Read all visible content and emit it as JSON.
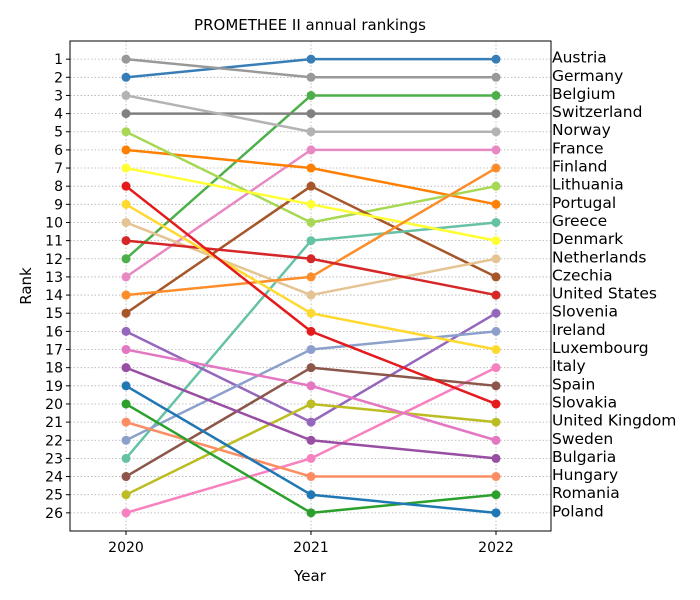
{
  "chart_data": {
    "type": "line",
    "title": "PROMETHEE II annual rankings",
    "xlabel": "Year",
    "ylabel": "Rank",
    "x": [
      "2020",
      "2021",
      "2022"
    ],
    "ylim": [
      27,
      0
    ],
    "y_ticks": [
      1,
      2,
      3,
      4,
      5,
      6,
      7,
      8,
      9,
      10,
      11,
      12,
      13,
      14,
      15,
      16,
      17,
      18,
      19,
      20,
      21,
      22,
      23,
      24,
      25,
      26
    ],
    "grid": true,
    "legend": "none",
    "series": [
      {
        "name": "Austria",
        "values": [
          2,
          1,
          1
        ],
        "color": "#377eb8"
      },
      {
        "name": "Germany",
        "values": [
          1,
          2,
          2
        ],
        "color": "#999999"
      },
      {
        "name": "Belgium",
        "values": [
          12,
          3,
          3
        ],
        "color": "#4daf4a"
      },
      {
        "name": "Switzerland",
        "values": [
          4,
          4,
          4
        ],
        "color": "#808080"
      },
      {
        "name": "Norway",
        "values": [
          3,
          5,
          5
        ],
        "color": "#b3b3b3"
      },
      {
        "name": "France",
        "values": [
          13,
          6,
          6
        ],
        "color": "#e78ac3"
      },
      {
        "name": "Portugal",
        "values": [
          6,
          7,
          9
        ],
        "color": "#ff7f00"
      },
      {
        "name": "Lithuania",
        "values": [
          5,
          10,
          8
        ],
        "color": "#a6d854"
      },
      {
        "name": "Czechia",
        "values": [
          15,
          8,
          13
        ],
        "color": "#a65628"
      },
      {
        "name": "Greece",
        "values": [
          23,
          11,
          10
        ],
        "color": "#66c2a5"
      },
      {
        "name": "Denmark",
        "values": [
          7,
          9,
          11
        ],
        "color": "#ffff33"
      },
      {
        "name": "Netherlands",
        "values": [
          10,
          14,
          12
        ],
        "color": "#e5c494"
      },
      {
        "name": "Finland",
        "values": [
          14,
          13,
          7
        ],
        "color": "#fc8d2a"
      },
      {
        "name": "United States",
        "values": [
          11,
          12,
          14
        ],
        "color": "#d62728"
      },
      {
        "name": "Slovenia",
        "values": [
          16,
          21,
          15
        ],
        "color": "#9467bd"
      },
      {
        "name": "Ireland",
        "values": [
          22,
          17,
          16
        ],
        "color": "#8da0cb"
      },
      {
        "name": "Luxembourg",
        "values": [
          9,
          15,
          17
        ],
        "color": "#ffd92f"
      },
      {
        "name": "Italy",
        "values": [
          26,
          23,
          18
        ],
        "color": "#f781bf"
      },
      {
        "name": "Spain",
        "values": [
          24,
          18,
          19
        ],
        "color": "#8c564b"
      },
      {
        "name": "Slovakia",
        "values": [
          8,
          16,
          20
        ],
        "color": "#e41a1c"
      },
      {
        "name": "United Kingdom",
        "values": [
          25,
          20,
          21
        ],
        "color": "#bcbd22"
      },
      {
        "name": "Sweden",
        "values": [
          17,
          19,
          22
        ],
        "color": "#e377c2"
      },
      {
        "name": "Bulgaria",
        "values": [
          18,
          22,
          23
        ],
        "color": "#984ea3"
      },
      {
        "name": "Hungary",
        "values": [
          21,
          24,
          24
        ],
        "color": "#fc8d62"
      },
      {
        "name": "Romania",
        "values": [
          20,
          26,
          25
        ],
        "color": "#2ca02c"
      },
      {
        "name": "Poland",
        "values": [
          19,
          25,
          26
        ],
        "color": "#1f77b4"
      }
    ]
  }
}
